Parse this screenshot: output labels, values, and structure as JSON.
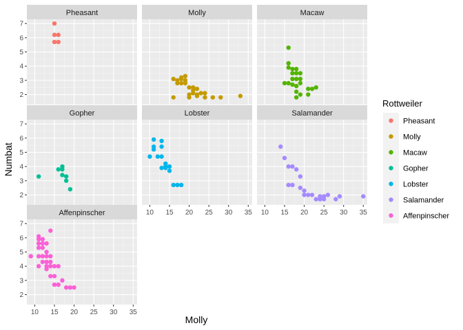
{
  "chart_data": {
    "type": "scatter",
    "facet_by": "Rottweiler",
    "xlabel": "Molly",
    "ylabel": "Numbat",
    "xlim": [
      8,
      36
    ],
    "ylim": [
      1.3,
      7.3
    ],
    "xticks": [
      10,
      15,
      20,
      25,
      30,
      35
    ],
    "yticks": [
      2,
      3,
      4,
      5,
      6,
      7
    ],
    "grid": true,
    "legend": {
      "title": "Rottweiler",
      "position": "right",
      "entries": [
        "Pheasant",
        "Molly",
        "Macaw",
        "Gopher",
        "Lobster",
        "Salamander",
        "Affenpinscher"
      ]
    },
    "colors": {
      "Pheasant": "#F8766D",
      "Molly": "#C49A00",
      "Macaw": "#53B400",
      "Gopher": "#00C094",
      "Lobster": "#00B6EB",
      "Salamander": "#A58AFF",
      "Affenpinscher": "#FB61D7"
    },
    "panels": [
      {
        "name": "Pheasant",
        "points": [
          [
            15,
            7.0
          ],
          [
            15,
            6.2
          ],
          [
            16,
            6.2
          ],
          [
            15,
            5.7
          ],
          [
            16,
            5.7
          ]
        ]
      },
      {
        "name": "Molly",
        "points": [
          [
            16,
            3.1
          ],
          [
            17,
            2.8
          ],
          [
            17,
            3.0
          ],
          [
            18,
            2.8
          ],
          [
            18,
            3.1
          ],
          [
            18,
            3.2
          ],
          [
            19,
            3.3
          ],
          [
            19,
            2.8
          ],
          [
            19,
            3.0
          ],
          [
            20,
            2.5
          ],
          [
            20,
            2.0
          ],
          [
            21,
            2.5
          ],
          [
            21,
            2.1
          ],
          [
            21,
            2.3
          ],
          [
            22,
            2.4
          ],
          [
            22,
            2.0
          ],
          [
            22,
            1.9
          ],
          [
            23,
            2.1
          ],
          [
            24,
            2.1
          ],
          [
            24,
            1.8
          ],
          [
            26,
            1.8
          ],
          [
            28,
            1.8
          ],
          [
            33,
            1.9
          ],
          [
            16,
            1.8
          ],
          [
            20,
            1.8
          ]
        ]
      },
      {
        "name": "Macaw",
        "points": [
          [
            16,
            5.3
          ],
          [
            16,
            4.2
          ],
          [
            15,
            2.8
          ],
          [
            16,
            2.8
          ],
          [
            16,
            3.9
          ],
          [
            17,
            3.8
          ],
          [
            17,
            3.5
          ],
          [
            17,
            3.1
          ],
          [
            17,
            2.7
          ],
          [
            18,
            3.8
          ],
          [
            18,
            3.5
          ],
          [
            18,
            3.1
          ],
          [
            18,
            2.6
          ],
          [
            18,
            2.2
          ],
          [
            18,
            1.8
          ],
          [
            19,
            3.5
          ],
          [
            19,
            3.1
          ],
          [
            19,
            2.8
          ],
          [
            19,
            2.0
          ],
          [
            21,
            2.4
          ],
          [
            21,
            2.0
          ],
          [
            22,
            2.4
          ],
          [
            23,
            2.5
          ]
        ]
      },
      {
        "name": "Gopher",
        "points": [
          [
            11,
            3.3
          ],
          [
            16,
            3.8
          ],
          [
            17,
            3.8
          ],
          [
            17,
            4.0
          ],
          [
            17,
            3.4
          ],
          [
            18,
            3.3
          ],
          [
            18,
            3.0
          ],
          [
            19,
            2.4
          ]
        ]
      },
      {
        "name": "Lobster",
        "points": [
          [
            10,
            4.7
          ],
          [
            11,
            5.9
          ],
          [
            11,
            5.4
          ],
          [
            11,
            5.2
          ],
          [
            12,
            4.7
          ],
          [
            13,
            5.8
          ],
          [
            13,
            5.4
          ],
          [
            13,
            4.7
          ],
          [
            13,
            3.9
          ],
          [
            14,
            4.2
          ],
          [
            14,
            4.0
          ],
          [
            14,
            3.9
          ],
          [
            15,
            3.7
          ],
          [
            15,
            4.0
          ],
          [
            16,
            2.7
          ],
          [
            17,
            2.7
          ],
          [
            18,
            2.7
          ]
        ]
      },
      {
        "name": "Salamander",
        "points": [
          [
            14,
            5.4
          ],
          [
            15,
            4.6
          ],
          [
            16,
            4.0
          ],
          [
            17,
            4.0
          ],
          [
            18,
            3.8
          ],
          [
            19,
            3.3
          ],
          [
            16,
            2.7
          ],
          [
            17,
            2.7
          ],
          [
            19,
            2.5
          ],
          [
            20,
            2.3
          ],
          [
            20,
            2.0
          ],
          [
            21,
            2.0
          ],
          [
            22,
            2.0
          ],
          [
            23,
            1.7
          ],
          [
            24,
            1.7
          ],
          [
            25,
            1.7
          ],
          [
            24,
            1.9
          ],
          [
            25,
            1.9
          ],
          [
            26,
            2.0
          ],
          [
            28,
            1.7
          ],
          [
            29,
            1.9
          ],
          [
            35,
            1.9
          ]
        ]
      },
      {
        "name": "Affenpinscher",
        "points": [
          [
            9,
            4.7
          ],
          [
            11,
            6.1
          ],
          [
            11,
            5.9
          ],
          [
            11,
            5.6
          ],
          [
            11,
            5.3
          ],
          [
            11,
            4.7
          ],
          [
            11,
            4.0
          ],
          [
            12,
            5.9
          ],
          [
            12,
            5.6
          ],
          [
            12,
            5.3
          ],
          [
            12,
            4.7
          ],
          [
            12,
            4.3
          ],
          [
            13,
            5.6
          ],
          [
            13,
            5.0
          ],
          [
            13,
            4.7
          ],
          [
            13,
            4.3
          ],
          [
            13,
            4.0
          ],
          [
            13,
            3.8
          ],
          [
            14,
            6.5
          ],
          [
            14,
            4.7
          ],
          [
            14,
            4.3
          ],
          [
            14,
            4.0
          ],
          [
            14,
            3.3
          ],
          [
            15,
            4.0
          ],
          [
            15,
            3.3
          ],
          [
            15,
            2.7
          ],
          [
            16,
            4.0
          ],
          [
            16,
            2.7
          ],
          [
            17,
            3.0
          ],
          [
            18,
            2.5
          ],
          [
            19,
            2.5
          ],
          [
            20,
            2.5
          ]
        ]
      }
    ]
  }
}
